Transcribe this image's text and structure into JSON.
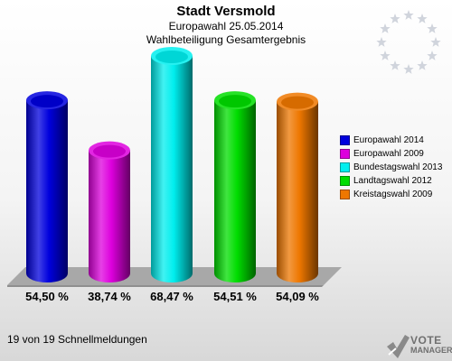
{
  "header": {
    "title": "Stadt Versmold",
    "subtitle": "Europawahl 25.05.2014",
    "subtitle2": "Wahlbeteiligung Gesamtergebnis"
  },
  "chart_data": {
    "type": "bar",
    "title": "Stadt Versmold",
    "subtitle": "Europawahl 25.05.2014 / Wahlbeteiligung Gesamtergebnis",
    "categories": [
      "Europawahl 2014",
      "Europawahl 2009",
      "Bundestagswahl 2013",
      "Landtagswahl 2012",
      "Kreistagswahl 2009"
    ],
    "values": [
      54.5,
      38.74,
      68.47,
      54.51,
      54.09
    ],
    "value_labels": [
      "54,50 %",
      "38,74 %",
      "68,47 %",
      "54,51 %",
      "54,09 %"
    ],
    "colors": [
      "#0000dd",
      "#dd00dd",
      "#00eeee",
      "#00dd00",
      "#ee7700"
    ],
    "unit": "%",
    "legend_position": "right",
    "grid": false
  },
  "footer": {
    "text": "19 von 19 Schnellmeldungen"
  },
  "logo": {
    "line1": "VOTE",
    "line2": "MANAGER"
  },
  "colors": {
    "background": "#ffffff",
    "floor": "#a8a8a8",
    "stars": "#d0d4dc"
  }
}
